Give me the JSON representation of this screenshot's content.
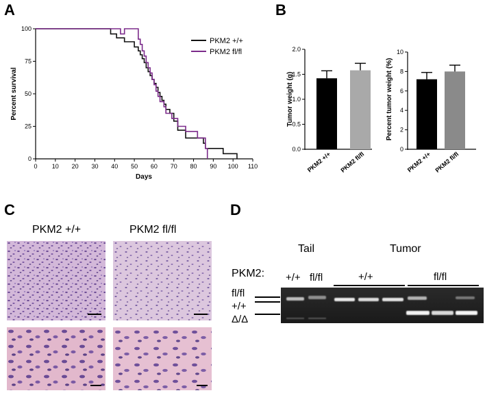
{
  "panels": {
    "a": "A",
    "b": "B",
    "c": "C",
    "d": "D"
  },
  "colors": {
    "wt": "#111111",
    "ko": "#7b2a8a",
    "bar_wt": "#000000",
    "bar_ko1": "#a9a9a9",
    "bar_ko2": "#8a8a8a"
  },
  "chart_data": [
    {
      "type": "line",
      "step": true,
      "xlabel": "Days",
      "ylabel": "Percent survival",
      "xlim": [
        0,
        110
      ],
      "ylim": [
        0,
        100
      ],
      "xticks": [
        "0",
        "10",
        "20",
        "30",
        "40",
        "50",
        "60",
        "70",
        "80",
        "90",
        "100",
        "110"
      ],
      "yticks": [
        "0",
        "25",
        "50",
        "75",
        "100"
      ],
      "legend_position": "top-right",
      "series": [
        {
          "name": "PKM2 +/+",
          "x": [
            0,
            38,
            41,
            45,
            50,
            52,
            53,
            54,
            55,
            56,
            57,
            58,
            59,
            60,
            61,
            62,
            63,
            64,
            65,
            66,
            68,
            70,
            72,
            76,
            85,
            86,
            95,
            102
          ],
          "y": [
            100,
            96,
            93,
            90,
            86,
            83,
            80,
            77,
            74,
            70,
            67,
            64,
            61,
            58,
            55,
            51,
            48,
            45,
            42,
            38,
            35,
            29,
            22,
            16,
            12,
            8,
            4,
            0
          ]
        },
        {
          "name": "PKM2 fl/fl",
          "x": [
            0,
            43,
            45,
            52,
            53,
            54,
            55,
            56,
            57,
            58,
            59,
            60,
            61,
            62,
            63,
            65,
            66,
            69,
            72,
            76,
            82,
            86,
            87
          ],
          "y": [
            100,
            96,
            100,
            92,
            88,
            83,
            79,
            74,
            70,
            66,
            61,
            57,
            52,
            48,
            44,
            40,
            35,
            31,
            25,
            21,
            16,
            8,
            0
          ]
        }
      ]
    },
    {
      "type": "bar",
      "ylabel": "Tumor weight (g)",
      "categories": [
        "PKM2 +/+",
        "PKM2 fl/fl"
      ],
      "values": [
        1.42,
        1.58
      ],
      "errors": [
        0.15,
        0.14
      ],
      "ylim": [
        0,
        2.0
      ],
      "yticks": [
        "0.0",
        "0.5",
        "1.0",
        "1.5",
        "2.0"
      ]
    },
    {
      "type": "bar",
      "ylabel": "Percent tumor weight (%)",
      "categories": [
        "PKM2 +/+",
        "PKM2 fl/fl"
      ],
      "values": [
        7.2,
        8.0
      ],
      "errors": [
        0.7,
        0.65
      ],
      "ylim": [
        0,
        10
      ],
      "yticks": [
        "0",
        "2",
        "4",
        "6",
        "8",
        "10"
      ]
    }
  ],
  "histology": {
    "col1": "PKM2 +/+",
    "col2": "PKM2 fl/fl"
  },
  "gel": {
    "tail": "Tail",
    "tumor": "Tumor",
    "gene": "PKM2:",
    "tail_lanes": [
      "+/+",
      "fl/fl"
    ],
    "tumor_groups": [
      "+/+",
      "fl/fl"
    ],
    "band_labels": [
      "fl/fl",
      "+/+",
      "Δ/Δ"
    ]
  }
}
